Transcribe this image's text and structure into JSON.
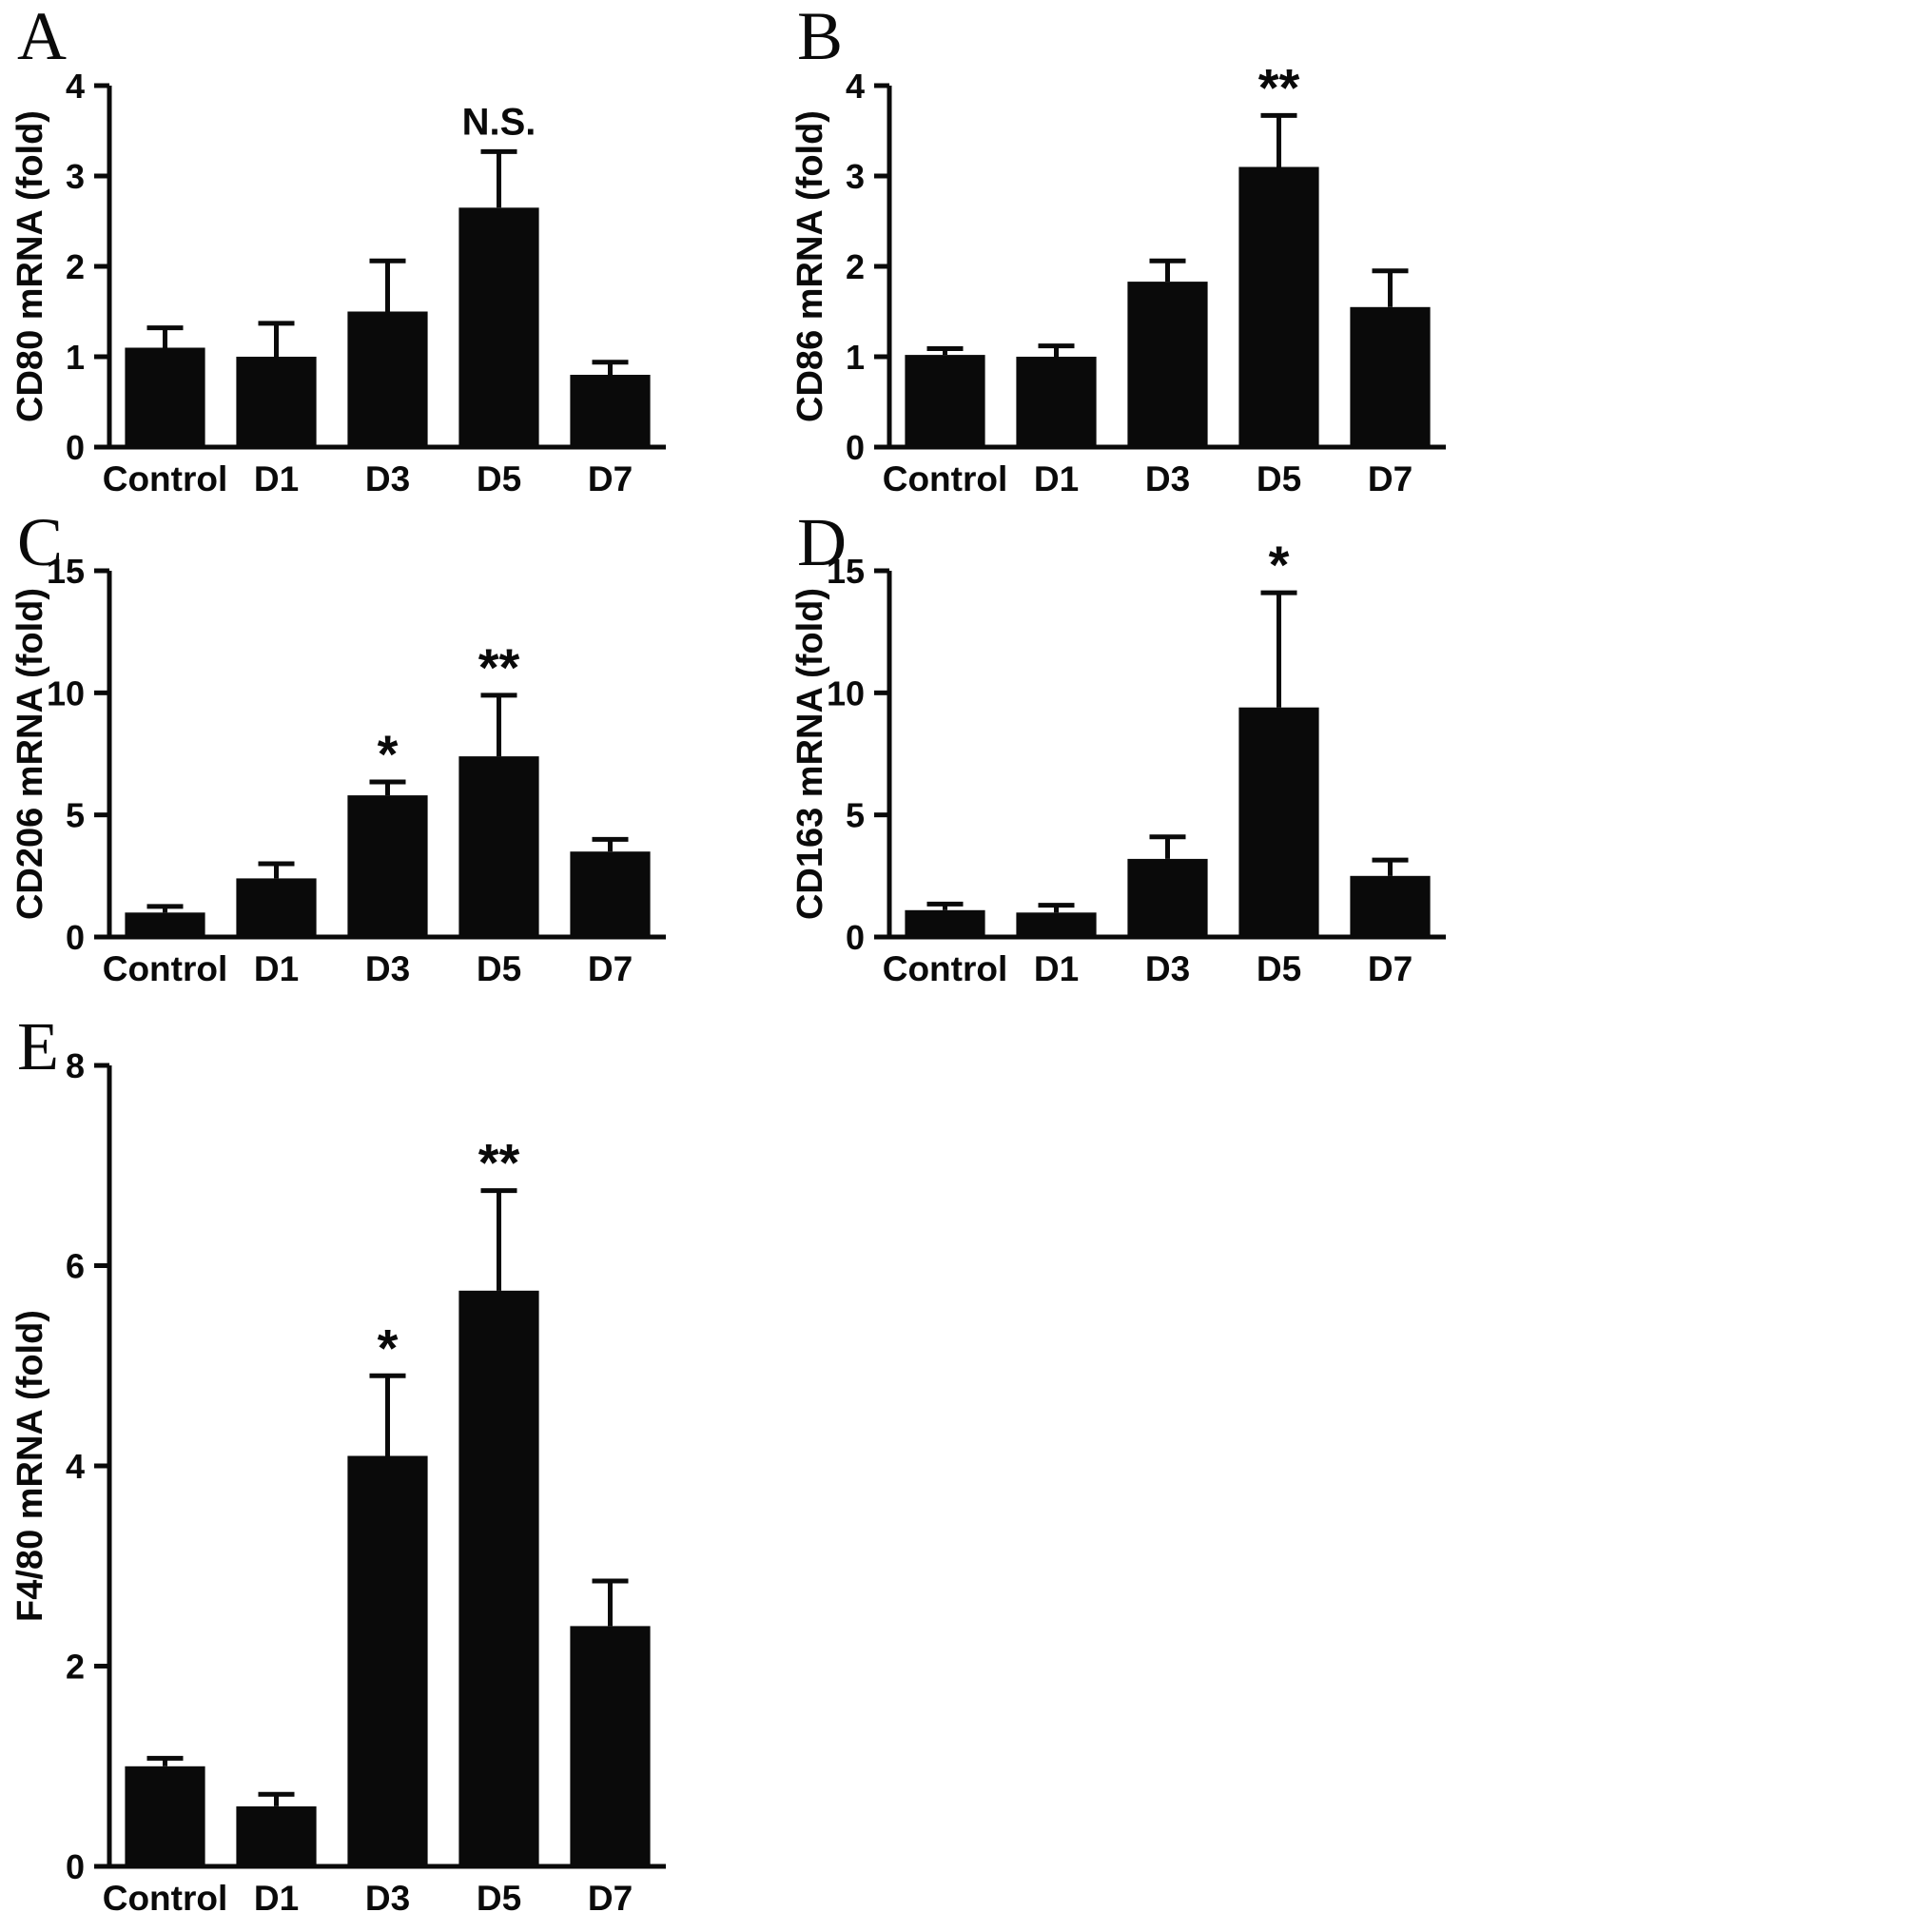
{
  "figure": {
    "background": "#ffffff",
    "bar_color": "#0a0a0a",
    "axis_color": "#0a0a0a"
  },
  "chart_data": [
    {
      "type": "bar",
      "panel": "A",
      "title": "",
      "xlabel": "",
      "ylabel": "CD80 mRNA (fold)",
      "categories": [
        "Control",
        "D1",
        "D3",
        "D5",
        "D7"
      ],
      "values": [
        1.1,
        1.0,
        1.5,
        2.65,
        0.8
      ],
      "errors": [
        0.22,
        0.37,
        0.56,
        0.62,
        0.14
      ],
      "annotations": [
        "",
        "",
        "",
        "N.S.",
        ""
      ],
      "ylim": [
        0,
        4
      ],
      "yticks": [
        0,
        1,
        2,
        3,
        4
      ],
      "grid": false,
      "legend": "none"
    },
    {
      "type": "bar",
      "panel": "B",
      "title": "",
      "xlabel": "",
      "ylabel": "CD86 mRNA (fold)",
      "categories": [
        "Control",
        "D1",
        "D3",
        "D5",
        "D7"
      ],
      "values": [
        1.02,
        1.0,
        1.83,
        3.1,
        1.55
      ],
      "errors": [
        0.07,
        0.12,
        0.23,
        0.57,
        0.4
      ],
      "annotations": [
        "",
        "",
        "",
        "**",
        ""
      ],
      "ylim": [
        0,
        4
      ],
      "yticks": [
        0,
        1,
        2,
        3,
        4
      ],
      "grid": false,
      "legend": "none"
    },
    {
      "type": "bar",
      "panel": "C",
      "title": "",
      "xlabel": "",
      "ylabel": "CD206 mRNA (fold)",
      "categories": [
        "Control",
        "D1",
        "D3",
        "D5",
        "D7"
      ],
      "values": [
        1.0,
        2.4,
        5.8,
        7.4,
        3.5
      ],
      "errors": [
        0.25,
        0.6,
        0.55,
        2.5,
        0.5
      ],
      "annotations": [
        "",
        "",
        "*",
        "**",
        ""
      ],
      "ylim": [
        0,
        15
      ],
      "yticks": [
        0,
        5,
        10,
        15
      ],
      "grid": false,
      "legend": "none"
    },
    {
      "type": "bar",
      "panel": "D",
      "title": "",
      "xlabel": "",
      "ylabel": "CD163 mRNA (fold)",
      "categories": [
        "Control",
        "D1",
        "D3",
        "D5",
        "D7"
      ],
      "values": [
        1.1,
        1.0,
        3.2,
        9.4,
        2.5
      ],
      "errors": [
        0.25,
        0.3,
        0.9,
        4.7,
        0.65
      ],
      "annotations": [
        "",
        "",
        "",
        "*",
        ""
      ],
      "ylim": [
        0,
        15
      ],
      "yticks": [
        0,
        5,
        10,
        15
      ],
      "grid": false,
      "legend": "none"
    },
    {
      "type": "bar",
      "panel": "E",
      "title": "",
      "xlabel": "",
      "ylabel": "F4/80 mRNA (fold)",
      "categories": [
        "Control",
        "D1",
        "D3",
        "D5",
        "D7"
      ],
      "values": [
        1.0,
        0.6,
        4.1,
        5.75,
        2.4
      ],
      "errors": [
        0.08,
        0.12,
        0.8,
        1.0,
        0.45
      ],
      "annotations": [
        "",
        "",
        "*",
        "**",
        ""
      ],
      "ylim": [
        0,
        8
      ],
      "yticks": [
        0,
        2,
        4,
        6,
        8
      ],
      "grid": false,
      "legend": "none"
    }
  ]
}
